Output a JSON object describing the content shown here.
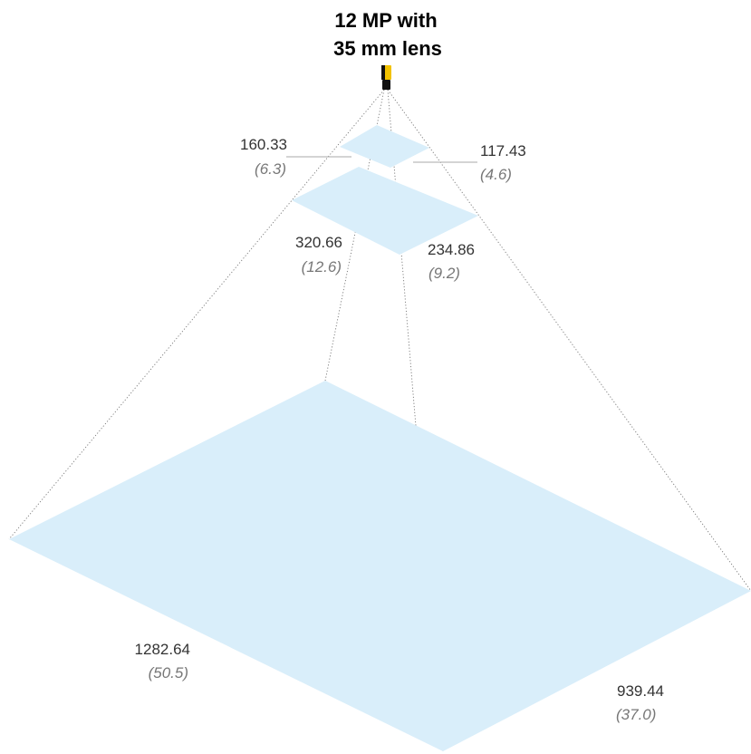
{
  "title": {
    "line1": "12 MP with",
    "line2": "35 mm lens"
  },
  "camera": {
    "icon": "camera-icon"
  },
  "fields_of_view": [
    {
      "width_label": "160.33",
      "width_inch_label": "(6.3)",
      "height_label": "117.43",
      "height_inch_label": "(4.6)"
    },
    {
      "width_label": "320.66",
      "width_inch_label": "(12.6)",
      "height_label": "234.86",
      "height_inch_label": "(9.2)"
    },
    {
      "width_label": "1282.64",
      "width_inch_label": "(50.5)",
      "height_label": "939.44",
      "height_inch_label": "(37.0)"
    }
  ],
  "colors": {
    "fov_fill": "#d9eefa",
    "camera_body": "#f2c200",
    "camera_mount": "#111111"
  }
}
